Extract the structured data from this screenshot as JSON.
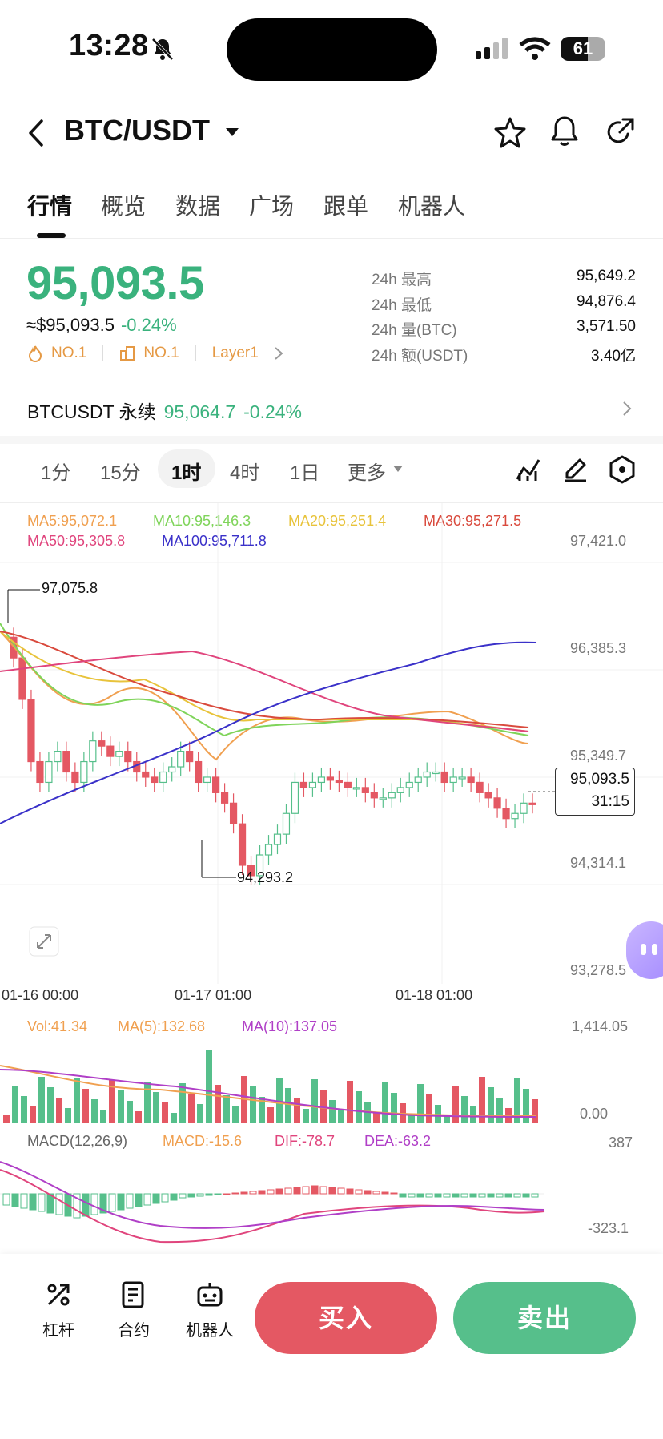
{
  "status_bar": {
    "time": "13:28",
    "battery": "61",
    "battery_level": 0.61
  },
  "header": {
    "pair": "BTC/USDT"
  },
  "tabs": [
    {
      "label": "行情"
    },
    {
      "label": "概览"
    },
    {
      "label": "数据"
    },
    {
      "label": "广场"
    },
    {
      "label": "跟单"
    },
    {
      "label": "机器人"
    }
  ],
  "ticker": {
    "last_price": "95,093.5",
    "usd_price": "≈$95,093.5",
    "change_pct": "-0.24%",
    "rank1": "NO.1",
    "rank2": "NO.1",
    "category": "Layer1",
    "stats": [
      {
        "label": "24h  最高",
        "value": "95,649.2"
      },
      {
        "label": "24h  最低",
        "value": "94,876.4"
      },
      {
        "label": "24h  量(BTC)",
        "value": "3,571.50"
      },
      {
        "label": "24h  额(USDT)",
        "value": "3.40亿"
      }
    ]
  },
  "perpetual": {
    "name": "BTCUSDT 永续",
    "price": "95,064.7",
    "change": "-0.24%"
  },
  "timeframes": [
    "1分",
    "15分",
    "1时",
    "4时",
    "1日",
    "更多"
  ],
  "active_timeframe": "1时",
  "chart_data": {
    "type": "candlestick",
    "ma_labels": [
      {
        "text": "MA5:95,072.1",
        "color": "#f0a050"
      },
      {
        "text": "MA10:95,146.3",
        "color": "#7fd45a"
      },
      {
        "text": "MA20:95,251.4",
        "color": "#e8c33b"
      },
      {
        "text": "MA30:95,271.5",
        "color": "#d94a3d"
      },
      {
        "text": "MA50:95,305.8",
        "color": "#e0457d"
      },
      {
        "text": "MA100:95,711.8",
        "color": "#3a31c9"
      }
    ],
    "y_ticks": [
      "97,421.0",
      "96,385.3",
      "95,349.7",
      "94,314.1",
      "93,278.5"
    ],
    "x_ticks": [
      "01-16 00:00",
      "01-17 01:00",
      "01-18 01:00"
    ],
    "high_marker": "97,075.8",
    "low_marker": "94,293.2",
    "current_price": "95,093.5",
    "countdown": "31:15",
    "volume": {
      "vol": "Vol:41.34",
      "ma5": "MA(5):132.68",
      "ma10": "MA(10):137.05",
      "y_top": "1,414.05",
      "y_bottom": "0.00"
    },
    "macd": {
      "label": "MACD(12,26,9)",
      "macd": "MACD:-15.6",
      "dif": "DIF:-78.7",
      "dea": "DEA:-63.2",
      "y_top": "387",
      "y_bottom": "-323.1"
    }
  },
  "bottom_nav": [
    {
      "label": "杠杆"
    },
    {
      "label": "合约"
    },
    {
      "label": "机器人"
    }
  ],
  "actions": {
    "buy": "买入",
    "sell": "卖出"
  }
}
